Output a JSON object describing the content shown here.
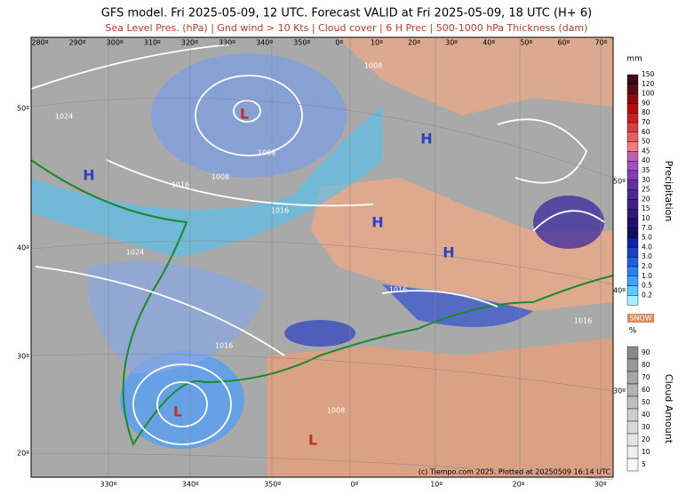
{
  "header": {
    "title": "GFS model. Fri 2025-05-09, 12 UTC. Forecast VALID at Fri 2025-05-09, 18 UTC (H+ 6)",
    "subtitle": "Sea Level Pres. (hPa) | Gnd wind > 10 Kts | Cloud cover | 6 H Prec | 500-1000 hPa Thickness (dam)"
  },
  "map": {
    "top_lon_labels": [
      "280º",
      "290º",
      "300º",
      "310º",
      "320º",
      "330º",
      "340º",
      "350º",
      "0º",
      "10º",
      "20º",
      "30º",
      "40º",
      "50º",
      "60º",
      "70º"
    ],
    "bottom_lon_labels": [
      "330º",
      "340º",
      "350º",
      "0º",
      "10º",
      "20º",
      "30º"
    ],
    "left_lat_labels": [
      "50º",
      "40º",
      "30º",
      "20º"
    ],
    "right_lat_labels": [
      "50º",
      "40º",
      "30º"
    ],
    "pressure_labels": [
      "1024",
      "1008",
      "1024",
      "1008",
      "1008",
      "1016",
      "1016",
      "1016",
      "1016",
      "1016",
      "1008"
    ],
    "centers": [
      "H",
      "H",
      "H",
      "H",
      "L",
      "L",
      "L"
    ],
    "copyright": "(c) Tiempo.com 2025. Plotted at 20250509 16:14 UTC"
  },
  "legend": {
    "precipitation": {
      "unit": "mm",
      "title": "Precipitation",
      "labels": [
        "150",
        "120",
        "100",
        "90",
        "80",
        "70",
        "60",
        "50",
        "45",
        "40",
        "35",
        "30",
        "25",
        "20",
        "15",
        "10",
        "7.0",
        "5.0",
        "4.0",
        "3.0",
        "2.0",
        "1.0",
        "0.5",
        "0.2"
      ],
      "colors": [
        "#3a0a1a",
        "#5a0a14",
        "#8a0c10",
        "#b01010",
        "#c82020",
        "#d84040",
        "#e46060",
        "#f08080",
        "#c060b0",
        "#a050c0",
        "#8040b0",
        "#6030a0",
        "#502890",
        "#402080",
        "#301878",
        "#201070",
        "#101060",
        "#1020a0",
        "#1840c0",
        "#2060e0",
        "#3080f0",
        "#40a0f8",
        "#60c8ff",
        "#a0f0ff"
      ]
    },
    "snow": "SNOW",
    "cloud": {
      "unit": "%",
      "title": "Cloud Amount",
      "labels": [
        "90",
        "80",
        "70",
        "60",
        "50",
        "40",
        "30",
        "20",
        "10",
        "5"
      ],
      "colors": [
        "#888888",
        "#999999",
        "#a5a5a5",
        "#b2b2b2",
        "#bfbfbf",
        "#cccccc",
        "#d8d8d8",
        "#e4e4e4",
        "#efefef",
        "#f8f8f8"
      ]
    }
  }
}
